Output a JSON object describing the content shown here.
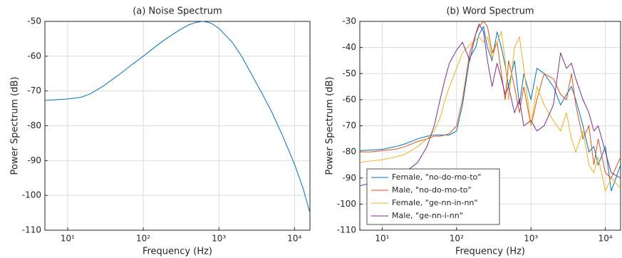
{
  "chart_data": [
    {
      "type": "line",
      "title": "(a) Noise Spectrum",
      "xlabel": "Frequency (Hz)",
      "ylabel": "Power Spectrum (dB)",
      "log_x": true,
      "grid": true,
      "xlim": [
        5,
        16000
      ],
      "ylim": [
        -110,
        -50
      ],
      "xticks": [
        {
          "value": 10,
          "label": "10¹"
        },
        {
          "value": 100,
          "label": "10²"
        },
        {
          "value": 1000,
          "label": "10³"
        },
        {
          "value": 10000,
          "label": "10⁴"
        }
      ],
      "yticks": [
        -110,
        -100,
        -90,
        -80,
        -70,
        -60,
        -50
      ],
      "x": [
        5,
        10,
        15,
        20,
        30,
        50,
        70,
        100,
        150,
        200,
        300,
        400,
        500,
        600,
        700,
        800,
        1000,
        1500,
        2000,
        3000,
        4000,
        5000,
        7000,
        10000,
        13000,
        16000
      ],
      "series": [
        {
          "name": "Noise",
          "color": "#0072bd",
          "values": [
            -72.7,
            -72.3,
            -71.8,
            -70.8,
            -68.5,
            -65,
            -62.5,
            -60,
            -57,
            -55,
            -52.5,
            -51,
            -50.3,
            -50,
            -50.2,
            -50.6,
            -52,
            -56,
            -60,
            -67,
            -72,
            -76,
            -83,
            -91,
            -98,
            -105
          ]
        }
      ]
    },
    {
      "type": "line",
      "title": "(b) Word Spectrum",
      "xlabel": "Frequency (Hz)",
      "ylabel": "Power Spectrum (dB)",
      "log_x": true,
      "grid": true,
      "legend": "lower left",
      "xlim": [
        5,
        16000
      ],
      "ylim": [
        -110,
        -30
      ],
      "xticks": [
        {
          "value": 10,
          "label": "10¹"
        },
        {
          "value": 100,
          "label": "10²"
        },
        {
          "value": 1000,
          "label": "10³"
        },
        {
          "value": 10000,
          "label": "10⁴"
        }
      ],
      "yticks": [
        -110,
        -100,
        -90,
        -80,
        -70,
        -60,
        -50,
        -40,
        -30
      ],
      "x": [
        5,
        7,
        10,
        15,
        20,
        30,
        40,
        50,
        60,
        70,
        80,
        100,
        120,
        150,
        180,
        200,
        230,
        260,
        300,
        350,
        400,
        450,
        500,
        600,
        700,
        800,
        1000,
        1200,
        1500,
        2000,
        2500,
        3000,
        3500,
        4000,
        5000,
        6000,
        7000,
        8000,
        10000,
        12000,
        16000
      ],
      "series": [
        {
          "name": "Female, \"no-do-mo-to\"",
          "color": "#0072bd",
          "values": [
            -79.5,
            -79.3,
            -79,
            -78,
            -77,
            -75,
            -74,
            -73.5,
            -73.5,
            -73.5,
            -73.5,
            -72,
            -62,
            -44,
            -40,
            -35,
            -32,
            -40,
            -45,
            -34,
            -40,
            -47,
            -55,
            -45,
            -62,
            -50,
            -60,
            -48,
            -50,
            -55,
            -62,
            -58,
            -55,
            -60,
            -70,
            -80,
            -78,
            -85,
            -78,
            -95,
            -85
          ]
        },
        {
          "name": "Male, \"no-do-mo-to\"",
          "color": "#d95319",
          "values": [
            -80,
            -80,
            -79.5,
            -79,
            -78,
            -76,
            -75,
            -74,
            -74,
            -73.5,
            -73,
            -70,
            -60,
            -42,
            -35,
            -32,
            -30,
            -32,
            -42,
            -38,
            -50,
            -60,
            -45,
            -55,
            -65,
            -55,
            -70,
            -60,
            -50,
            -52,
            -58,
            -60,
            -50,
            -62,
            -75,
            -70,
            -85,
            -75,
            -88,
            -90,
            -82
          ]
        },
        {
          "name": "Female, \"ge-nn-in-nn\"",
          "color": "#edb120",
          "values": [
            -84,
            -83.5,
            -83,
            -82,
            -81,
            -78,
            -75,
            -72,
            -67,
            -60,
            -55,
            -48,
            -42,
            -39,
            -37,
            -36,
            -38,
            -36,
            -44,
            -38,
            -34,
            -45,
            -60,
            -40,
            -36,
            -48,
            -70,
            -55,
            -62,
            -68,
            -72,
            -65,
            -75,
            -80,
            -72,
            -85,
            -88,
            -82,
            -95,
            -90,
            -94
          ]
        },
        {
          "name": "Male, \"ge-nn-i-nn\"",
          "color": "#7e2f8e",
          "values": [
            -93,
            -92,
            -91,
            -90,
            -88,
            -84,
            -78,
            -70,
            -60,
            -52,
            -46,
            -41,
            -38,
            -45,
            -35,
            -31,
            -34,
            -45,
            -55,
            -46,
            -52,
            -58,
            -55,
            -65,
            -60,
            -70,
            -68,
            -72,
            -70,
            -62,
            -42,
            -48,
            -46,
            -52,
            -60,
            -65,
            -72,
            -70,
            -80,
            -88,
            -90
          ]
        }
      ]
    }
  ]
}
